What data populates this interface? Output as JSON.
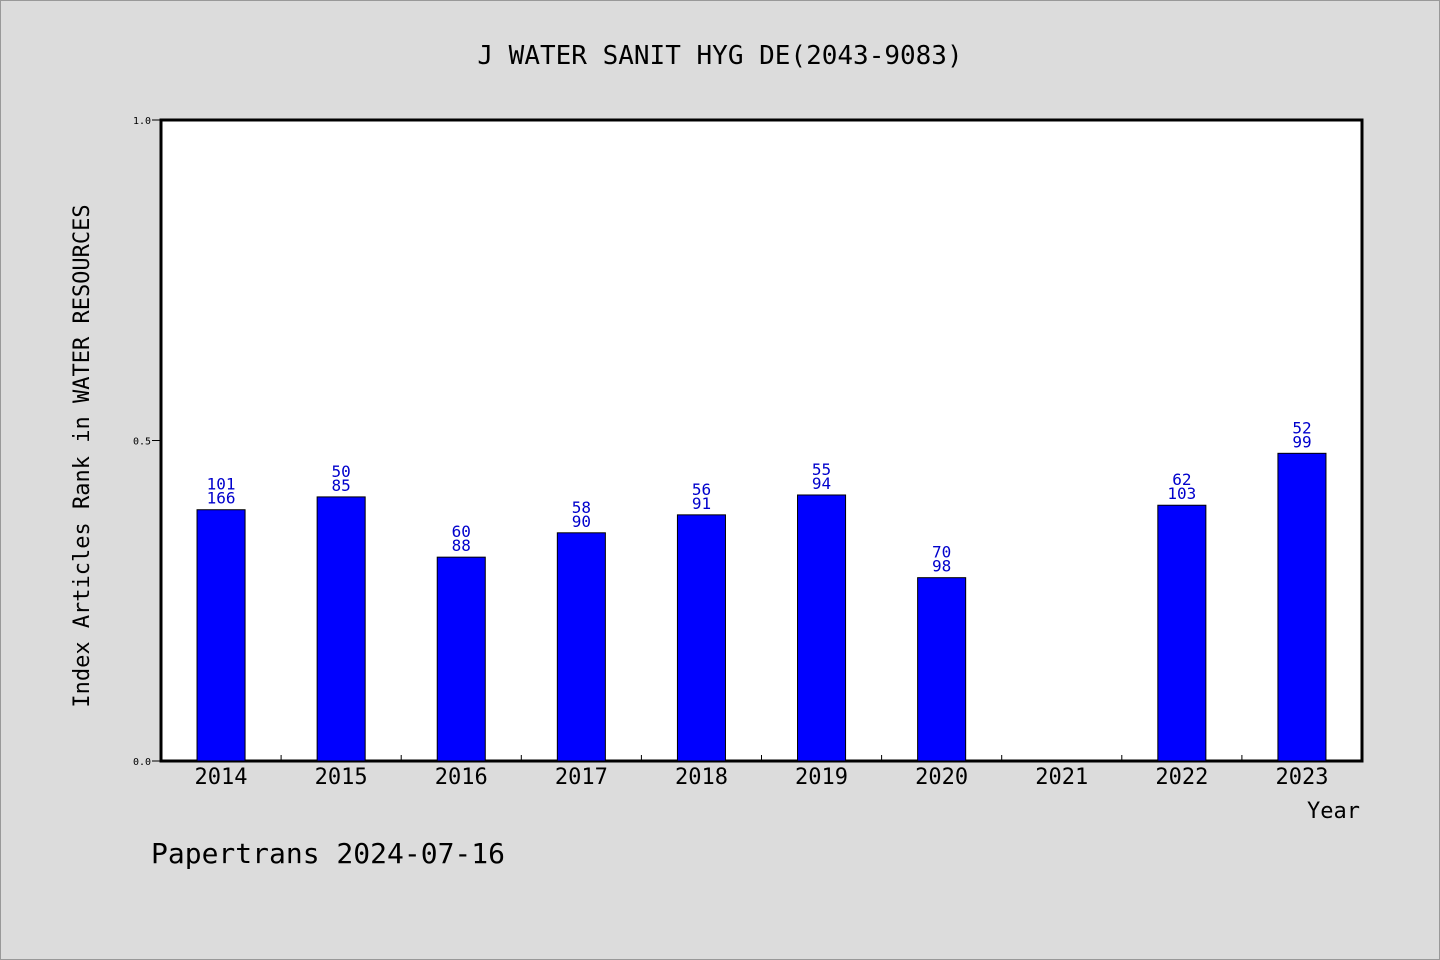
{
  "chart_data": {
    "type": "bar",
    "title": "J WATER SANIT HYG DE(2043-9083)",
    "xlabel": "Year",
    "ylabel": "Index Articles Rank in WATER RESOURCES",
    "ylim": [
      0.0,
      1.0
    ],
    "yticks": [
      "0.0",
      "0.5",
      "1.0"
    ],
    "categories": [
      "2014",
      "2015",
      "2016",
      "2017",
      "2018",
      "2019",
      "2020",
      "2021",
      "2022",
      "2023"
    ],
    "values": [
      0.392,
      0.412,
      0.318,
      0.356,
      0.384,
      0.415,
      0.286,
      null,
      0.399,
      0.48
    ],
    "labels_top": [
      "101",
      "50",
      "60",
      "58",
      "56",
      "55",
      "70",
      "",
      "62",
      "52"
    ],
    "labels_bottom": [
      "166",
      "85",
      "88",
      "90",
      "91",
      "94",
      "98",
      "",
      "103",
      "99"
    ],
    "bar_color": "#0000ff",
    "label_color": "#0000cc",
    "grid": false
  },
  "footer": {
    "text": "Papertrans 2024-07-16"
  }
}
